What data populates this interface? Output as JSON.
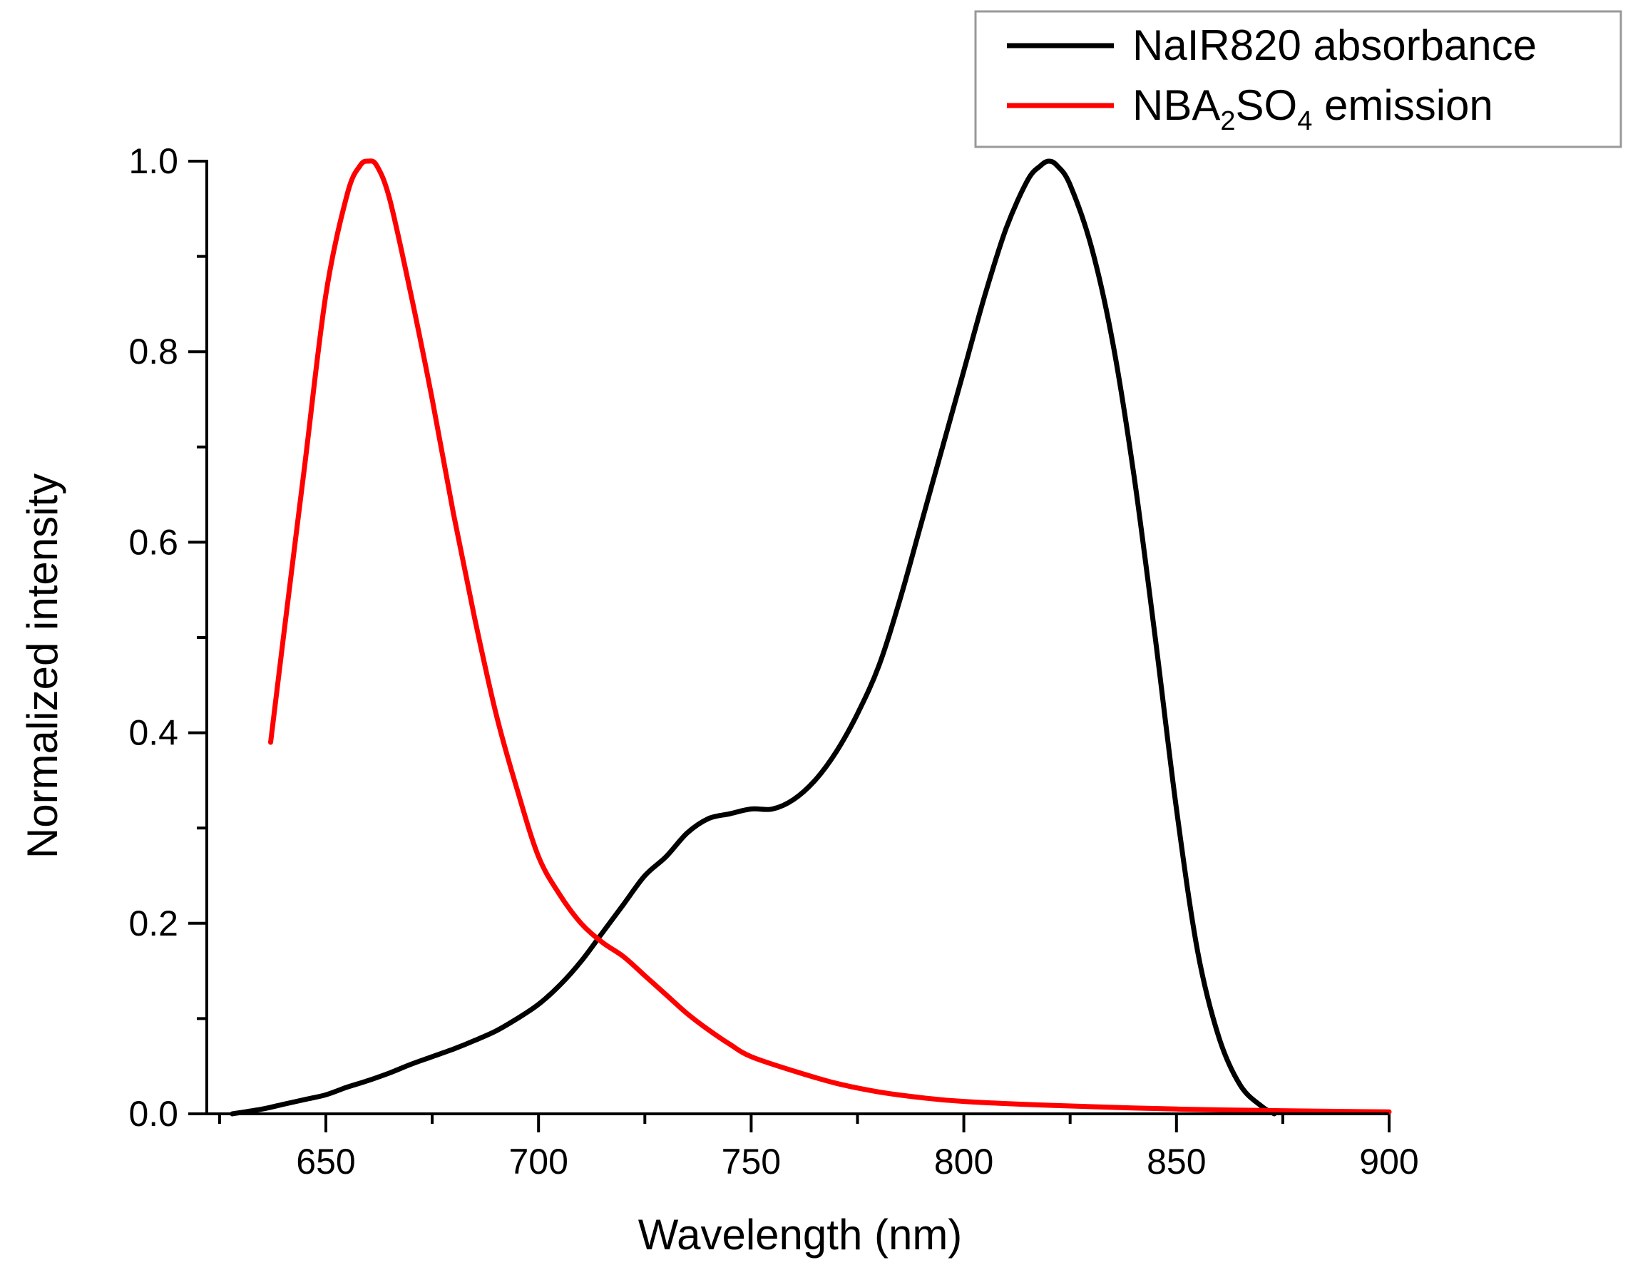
{
  "chart_data": {
    "type": "line",
    "title": "",
    "xlabel": "Wavelength (nm)",
    "ylabel": "Normalized intensity",
    "xlim": [
      622,
      900
    ],
    "ylim": [
      0,
      1.0
    ],
    "x_major_ticks": [
      650,
      700,
      750,
      800,
      850,
      900
    ],
    "x_tick_labels": [
      "650",
      "700",
      "750",
      "800",
      "850",
      "900"
    ],
    "x_minor_ticks": [
      625,
      675,
      725,
      775,
      825,
      875
    ],
    "y_major_ticks": [
      0.0,
      0.2,
      0.4,
      0.6,
      0.8,
      1.0
    ],
    "y_tick_labels": [
      "0.0",
      "0.2",
      "0.4",
      "0.6",
      "0.8",
      "1.0"
    ],
    "y_minor_ticks": [
      0.1,
      0.3,
      0.5,
      0.7,
      0.9
    ],
    "grid": false,
    "legend_position": "top-right",
    "series": [
      {
        "name": "NaIR820 absorbance",
        "color": "#000000",
        "x": [
          628,
          635,
          640,
          645,
          650,
          655,
          660,
          665,
          670,
          675,
          680,
          685,
          690,
          695,
          700,
          705,
          710,
          715,
          720,
          725,
          730,
          735,
          740,
          745,
          750,
          755,
          760,
          765,
          770,
          775,
          780,
          785,
          790,
          795,
          800,
          805,
          810,
          815,
          818,
          820,
          822,
          825,
          830,
          835,
          840,
          845,
          850,
          855,
          860,
          865,
          870,
          873
        ],
        "y": [
          0.0,
          0.005,
          0.01,
          0.015,
          0.02,
          0.028,
          0.035,
          0.043,
          0.052,
          0.06,
          0.068,
          0.077,
          0.087,
          0.1,
          0.115,
          0.135,
          0.16,
          0.19,
          0.22,
          0.25,
          0.27,
          0.295,
          0.31,
          0.315,
          0.32,
          0.32,
          0.33,
          0.35,
          0.38,
          0.42,
          0.47,
          0.54,
          0.62,
          0.7,
          0.78,
          0.86,
          0.93,
          0.98,
          0.995,
          1.0,
          0.995,
          0.975,
          0.91,
          0.81,
          0.67,
          0.5,
          0.32,
          0.17,
          0.08,
          0.03,
          0.008,
          0.0
        ]
      },
      {
        "name_main": "NBA",
        "name_sub1": "2",
        "name_mid": "SO",
        "name_sub2": "4",
        "name_tail": " emission",
        "color": "#ff0000",
        "x": [
          637,
          640,
          645,
          650,
          655,
          658,
          660,
          662,
          665,
          670,
          675,
          680,
          685,
          690,
          695,
          700,
          705,
          710,
          715,
          720,
          725,
          730,
          735,
          740,
          745,
          750,
          760,
          770,
          780,
          790,
          800,
          820,
          850,
          880,
          900
        ],
        "y": [
          0.39,
          0.5,
          0.68,
          0.86,
          0.965,
          0.995,
          1.0,
          0.995,
          0.96,
          0.86,
          0.75,
          0.63,
          0.52,
          0.42,
          0.34,
          0.27,
          0.23,
          0.2,
          0.18,
          0.165,
          0.145,
          0.125,
          0.105,
          0.088,
          0.073,
          0.06,
          0.045,
          0.032,
          0.023,
          0.017,
          0.013,
          0.009,
          0.005,
          0.003,
          0.002
        ]
      }
    ]
  }
}
